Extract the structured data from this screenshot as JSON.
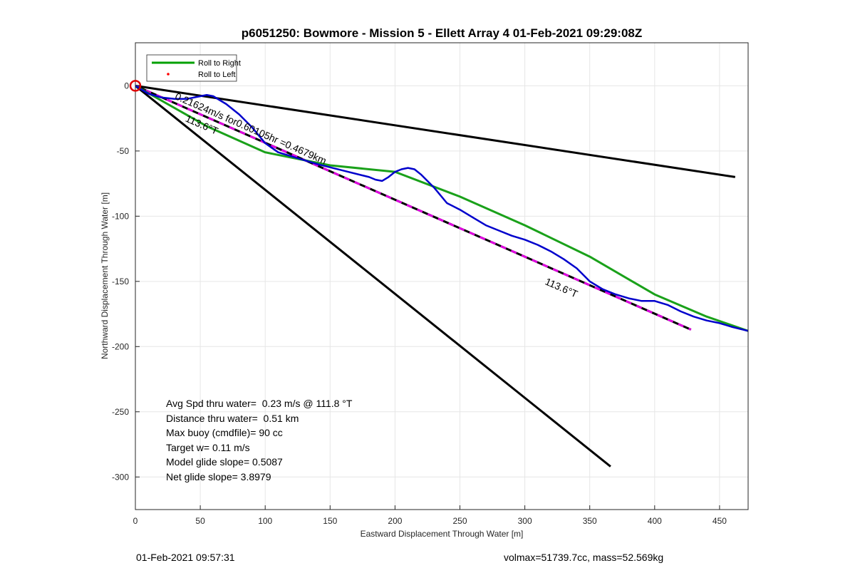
{
  "chart_data": {
    "type": "line",
    "title": "p6051250: Bowmore - Mission 5 - Ellett Array 4 01-Feb-2021 09:29:08Z",
    "xlabel": "Eastward Displacement Through Water [m]",
    "ylabel": "Northward Displacement Through Water [m]",
    "xlim": [
      0,
      472
    ],
    "ylim": [
      -325,
      33
    ],
    "x_ticks": [
      0,
      50,
      100,
      150,
      200,
      250,
      300,
      350,
      400,
      450
    ],
    "y_ticks": [
      0,
      -50,
      -100,
      -150,
      -200,
      -250,
      -300
    ],
    "grid": true,
    "legend_position": "top-left",
    "legend": [
      {
        "label": "Roll to Right",
        "color": "#00a000",
        "style": "line"
      },
      {
        "label": "Roll to Left",
        "color": "#ff0000",
        "style": "dot"
      }
    ],
    "series": [
      {
        "name": "Roll to Right",
        "color": "#1aa11a",
        "x": [
          0,
          55,
          100,
          150,
          200,
          250,
          300,
          350,
          400,
          440,
          472
        ],
        "y": [
          0,
          -31,
          -51,
          -61,
          -66,
          -85,
          -107,
          -131,
          -160,
          -177,
          -188
        ]
      },
      {
        "color": "#0000cc",
        "x": [
          0,
          10,
          20,
          30,
          40,
          50,
          55,
          60,
          70,
          80,
          90,
          100,
          110,
          120,
          140,
          160,
          180,
          185,
          190,
          195,
          200,
          205,
          210,
          215,
          220,
          230,
          240,
          250,
          260,
          270,
          280,
          290,
          300,
          310,
          320,
          330,
          340,
          350,
          360,
          370,
          380,
          390,
          400,
          410,
          420,
          430,
          440,
          450,
          460,
          472
        ],
        "y": [
          0,
          -6,
          -9,
          -10,
          -10,
          -8,
          -7,
          -8,
          -14,
          -22,
          -32,
          -44,
          -51,
          -54,
          -60,
          -65,
          -70,
          -72,
          -73,
          -70,
          -66,
          -64,
          -63,
          -64,
          -68,
          -78,
          -90,
          -95,
          -101,
          -107,
          -111,
          -115,
          -118,
          -122,
          -127,
          -133,
          -140,
          -150,
          -156,
          -160,
          -163,
          -165,
          -165,
          -168,
          -173,
          -177,
          -180,
          -182,
          -185,
          -188
        ]
      },
      {
        "color": "#e000e0",
        "x": [
          0,
          428
        ],
        "y": [
          0,
          -187
        ]
      },
      {
        "color": "#000000",
        "x": [
          0,
          462
        ],
        "y": [
          0,
          -70
        ]
      },
      {
        "color": "#000000",
        "x": [
          0,
          366
        ],
        "y": [
          0,
          -292
        ]
      }
    ],
    "start_marker": {
      "x": 0,
      "y": 0,
      "color": "#e00000"
    },
    "annotations": [
      {
        "text": "0.21624m/s for0.60105hr =0.4679km",
        "x": 30,
        "y": -10,
        "angle": 23.6
      },
      {
        "text": "113.6°T",
        "x": 38,
        "y": -27,
        "angle": 23.6
      },
      {
        "text": "113.6°T",
        "x": 315,
        "y": -152,
        "angle": 23.6
      }
    ],
    "stats_lines": [
      "Avg Spd thru water=  0.23 m/s @ 111.8 °T",
      "Distance thru water=  0.51 km",
      "Max buoy (cmdfile)= 90 cc",
      "Target w= 0.11 m/s",
      "Model glide slope= 0.5087",
      "Net glide slope= 3.8979"
    ]
  },
  "footer": {
    "timestamp": "01-Feb-2021 09:57:31",
    "info": "volmax=51739.7cc, mass=52.569kg"
  }
}
